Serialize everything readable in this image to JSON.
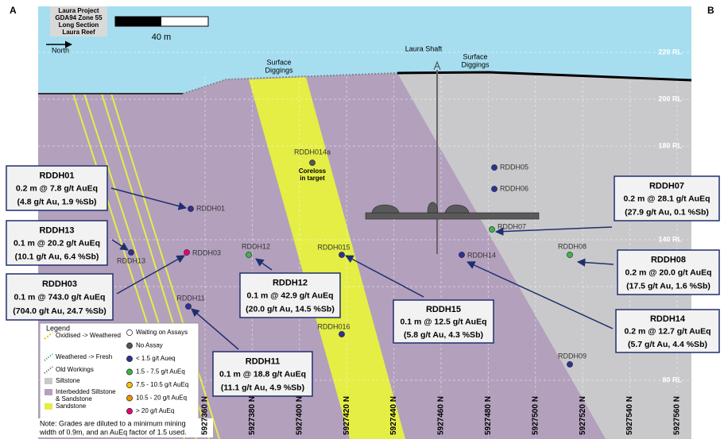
{
  "corner_labels": [
    "A",
    "B"
  ],
  "info_box": [
    "Laura Project",
    "GDA94 Zone 55",
    "Long Section",
    "Laura Reef"
  ],
  "scale_bar_label": "40 m",
  "north_label": "North",
  "surface_labels": [
    [
      "Surface",
      "Diggings"
    ],
    [
      "Surface",
      "Diggings"
    ]
  ],
  "shaft_label": "Laura Shaft",
  "rl_labels": [
    "220 RL",
    "200 RL",
    "180 RL",
    "140 RL",
    "120 RL",
    "80 RL"
  ],
  "northings": [
    "5927360 N",
    "5927380 N",
    "5927400 N",
    "5927420 N",
    "5927440 N",
    "5927460 N",
    "5927480 N",
    "5927500 N",
    "5927520 N",
    "5927540 N",
    "5927560 N"
  ],
  "drill_holes": [
    "RDDH014a",
    "RDDH05",
    "RDDH06",
    "RDDH01",
    "RDDH07",
    "RDDH13",
    "RDDH03",
    "RDDH12",
    "RDDH015",
    "RDDH14",
    "RDDH08",
    "RDDH11",
    "RDDH016",
    "RDDH09"
  ],
  "coreloss_note": [
    "Coreloss",
    "in target"
  ],
  "callouts": [
    {
      "title": "RDDH01",
      "lines": [
        "0.2 m @ 7.8 g/t AuEq",
        "(4.8 g/t Au, 1.9 %Sb)"
      ]
    },
    {
      "title": "RDDH13",
      "lines": [
        "0.1 m @ 20.2 g/t AuEq",
        "(10.1 g/t Au, 6.4 %Sb)"
      ]
    },
    {
      "title": "RDDH03",
      "lines": [
        "0.1 m @ 743.0 g/t AuEq",
        "(704.0 g/t Au, 24.7 %Sb)"
      ]
    },
    {
      "title": "RDDH12",
      "lines": [
        "0.1 m @ 42.9 g/t AuEq",
        "(20.0 g/t Au, 14.5 %Sb)"
      ]
    },
    {
      "title": "RDDH11",
      "lines": [
        "0.1 m @ 18.8 g/t AuEq",
        "(11.1 g/t Au, 4.9 %Sb)"
      ]
    },
    {
      "title": "RDDH15",
      "lines": [
        "0.1 m @ 12.5 g/t AuEq",
        "(5.8 g/t Au, 4.3 %Sb)"
      ]
    },
    {
      "title": "RDDH07",
      "lines": [
        "0.2 m @ 28.1 g/t AuEq",
        "(27.9 g/t Au, 0.1 %Sb)"
      ]
    },
    {
      "title": "RDDH08",
      "lines": [
        "0.2 m @ 20.0 g/t AuEq",
        "(17.5 g/t Au, 1.6 %Sb)"
      ]
    },
    {
      "title": "RDDH14",
      "lines": [
        "0.2 m @ 12.7 g/t AuEq",
        "(5.7 g/t Au, 4.4 %Sb)"
      ]
    }
  ],
  "legend": {
    "title": "Legend",
    "units": [
      [
        "Oxidised -> Weathered"
      ],
      [
        "Weathered -> Fresh"
      ],
      [
        "Old Workings"
      ],
      [
        "Siltstone"
      ],
      [
        "Interbedded Siltstone",
        "& Sandstone"
      ],
      [
        "Sandstone"
      ]
    ],
    "grades": [
      "Waiting on Assays",
      "No Assay",
      "< 1.5 g/t Aueq",
      "1.5 - 7.5 g/t AuEq",
      "7.5 - 10.5 g/t AuEq",
      "10.5 - 20 g/t AuEq",
      "> 20 g/t AuEq"
    ]
  },
  "note": [
    "Note: Grades are diluted to a minimum mining",
    "width of 0.9m, and an AuEq factor of 1.5 used."
  ]
}
